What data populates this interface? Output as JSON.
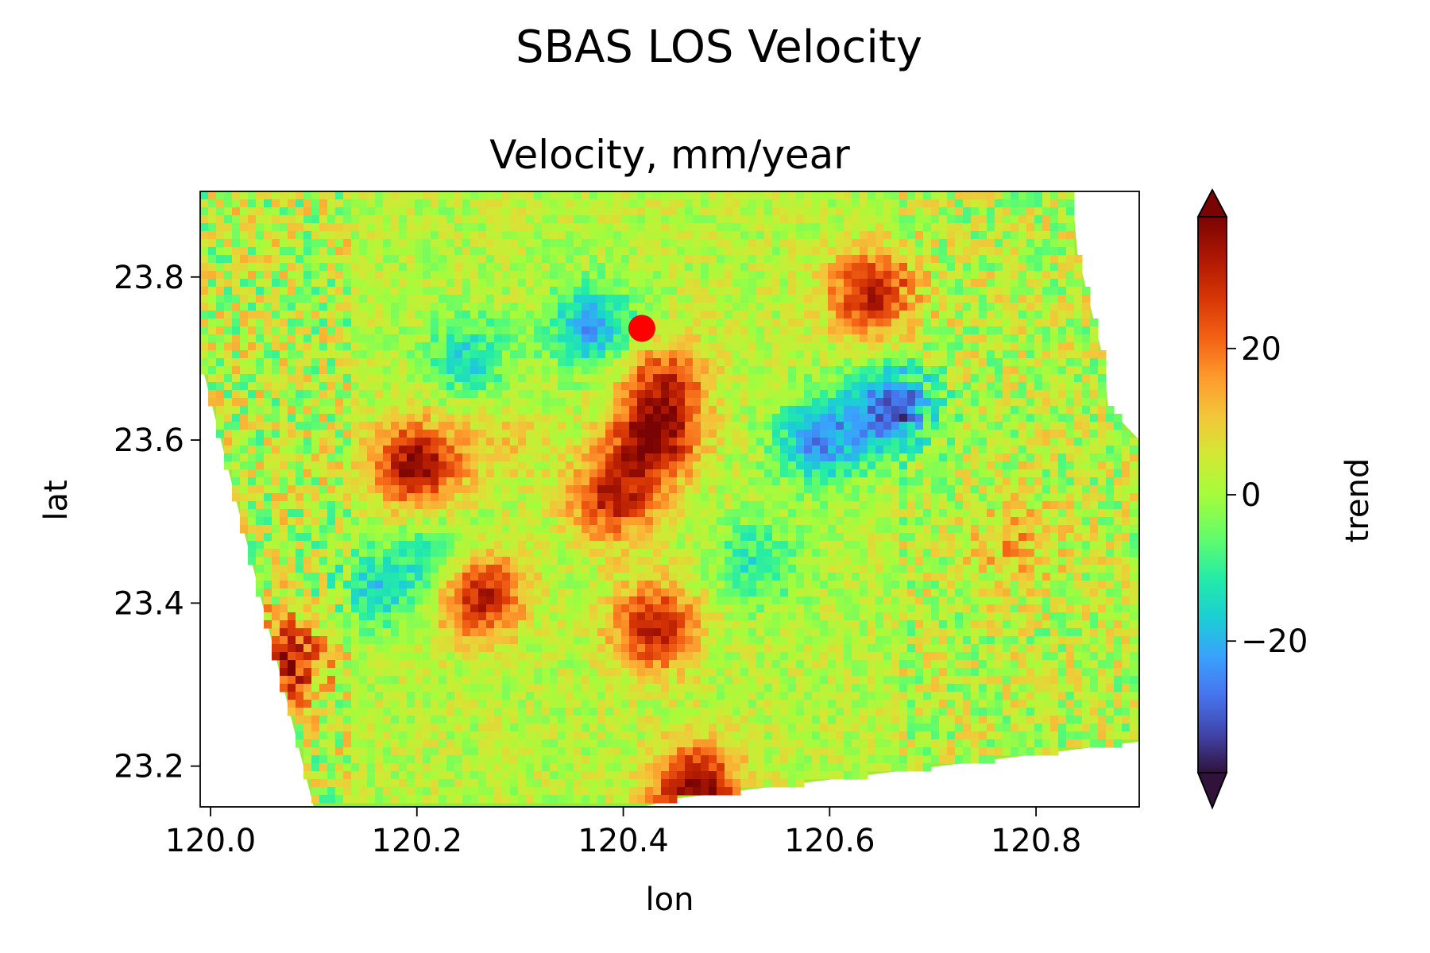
{
  "figure": {
    "suptitle": "SBAS LOS Velocity"
  },
  "chart_data": {
    "type": "heatmap",
    "title": "Velocity, mm/year",
    "xlabel": "lon",
    "ylabel": "lat",
    "xlim": [
      119.99,
      120.9
    ],
    "ylim": [
      23.15,
      23.905
    ],
    "x_ticks": [
      120.0,
      120.2,
      120.4,
      120.6,
      120.8
    ],
    "x_tick_labels": [
      "120.0",
      "120.2",
      "120.4",
      "120.6",
      "120.8"
    ],
    "y_ticks": [
      23.2,
      23.4,
      23.6,
      23.8
    ],
    "y_tick_labels": [
      "23.2",
      "23.4",
      "23.6",
      "23.8"
    ],
    "grid": false,
    "colorbar": {
      "label": "trend",
      "colormap": "turbo",
      "vmin": -38,
      "vmax": 38,
      "extend": "both",
      "ticks": [
        20,
        0,
        -20
      ],
      "tick_labels": [
        "20",
        "0",
        "−20"
      ]
    },
    "data_footprint_lonlat": [
      [
        119.99,
        23.905
      ],
      [
        120.835,
        23.905
      ],
      [
        120.84,
        23.83
      ],
      [
        120.865,
        23.7
      ],
      [
        120.87,
        23.64
      ],
      [
        120.9,
        23.6
      ],
      [
        120.9,
        23.23
      ],
      [
        120.45,
        23.16
      ],
      [
        120.42,
        23.15
      ],
      [
        120.1,
        23.15
      ],
      [
        119.99,
        23.7
      ]
    ],
    "anomalies": [
      {
        "lon": 120.2,
        "lat": 23.57,
        "value": 34
      },
      {
        "lon": 120.43,
        "lat": 23.6,
        "value": 32
      },
      {
        "lon": 120.44,
        "lat": 23.67,
        "value": 24
      },
      {
        "lon": 120.39,
        "lat": 23.53,
        "value": 28
      },
      {
        "lon": 120.43,
        "lat": 23.37,
        "value": 30
      },
      {
        "lon": 120.47,
        "lat": 23.17,
        "value": 38
      },
      {
        "lon": 120.26,
        "lat": 23.41,
        "value": 32
      },
      {
        "lon": 120.64,
        "lat": 23.78,
        "value": 30
      },
      {
        "lon": 120.07,
        "lat": 23.33,
        "value": 30
      },
      {
        "lon": 120.66,
        "lat": 23.64,
        "value": -32
      },
      {
        "lon": 120.59,
        "lat": 23.6,
        "value": -26
      },
      {
        "lon": 120.37,
        "lat": 23.74,
        "value": -24
      },
      {
        "lon": 120.22,
        "lat": 23.45,
        "value": -14
      },
      {
        "lon": 120.25,
        "lat": 23.7,
        "value": -16
      },
      {
        "lon": 120.53,
        "lat": 23.45,
        "value": -14
      },
      {
        "lon": 120.16,
        "lat": 23.42,
        "value": -16
      },
      {
        "lon": 120.28,
        "lat": 23.6,
        "value": 8
      },
      {
        "lon": 120.78,
        "lat": 23.47,
        "value": 10
      }
    ],
    "marker": {
      "lon": 120.418,
      "lat": 23.737,
      "color": "#ff0000"
    }
  }
}
